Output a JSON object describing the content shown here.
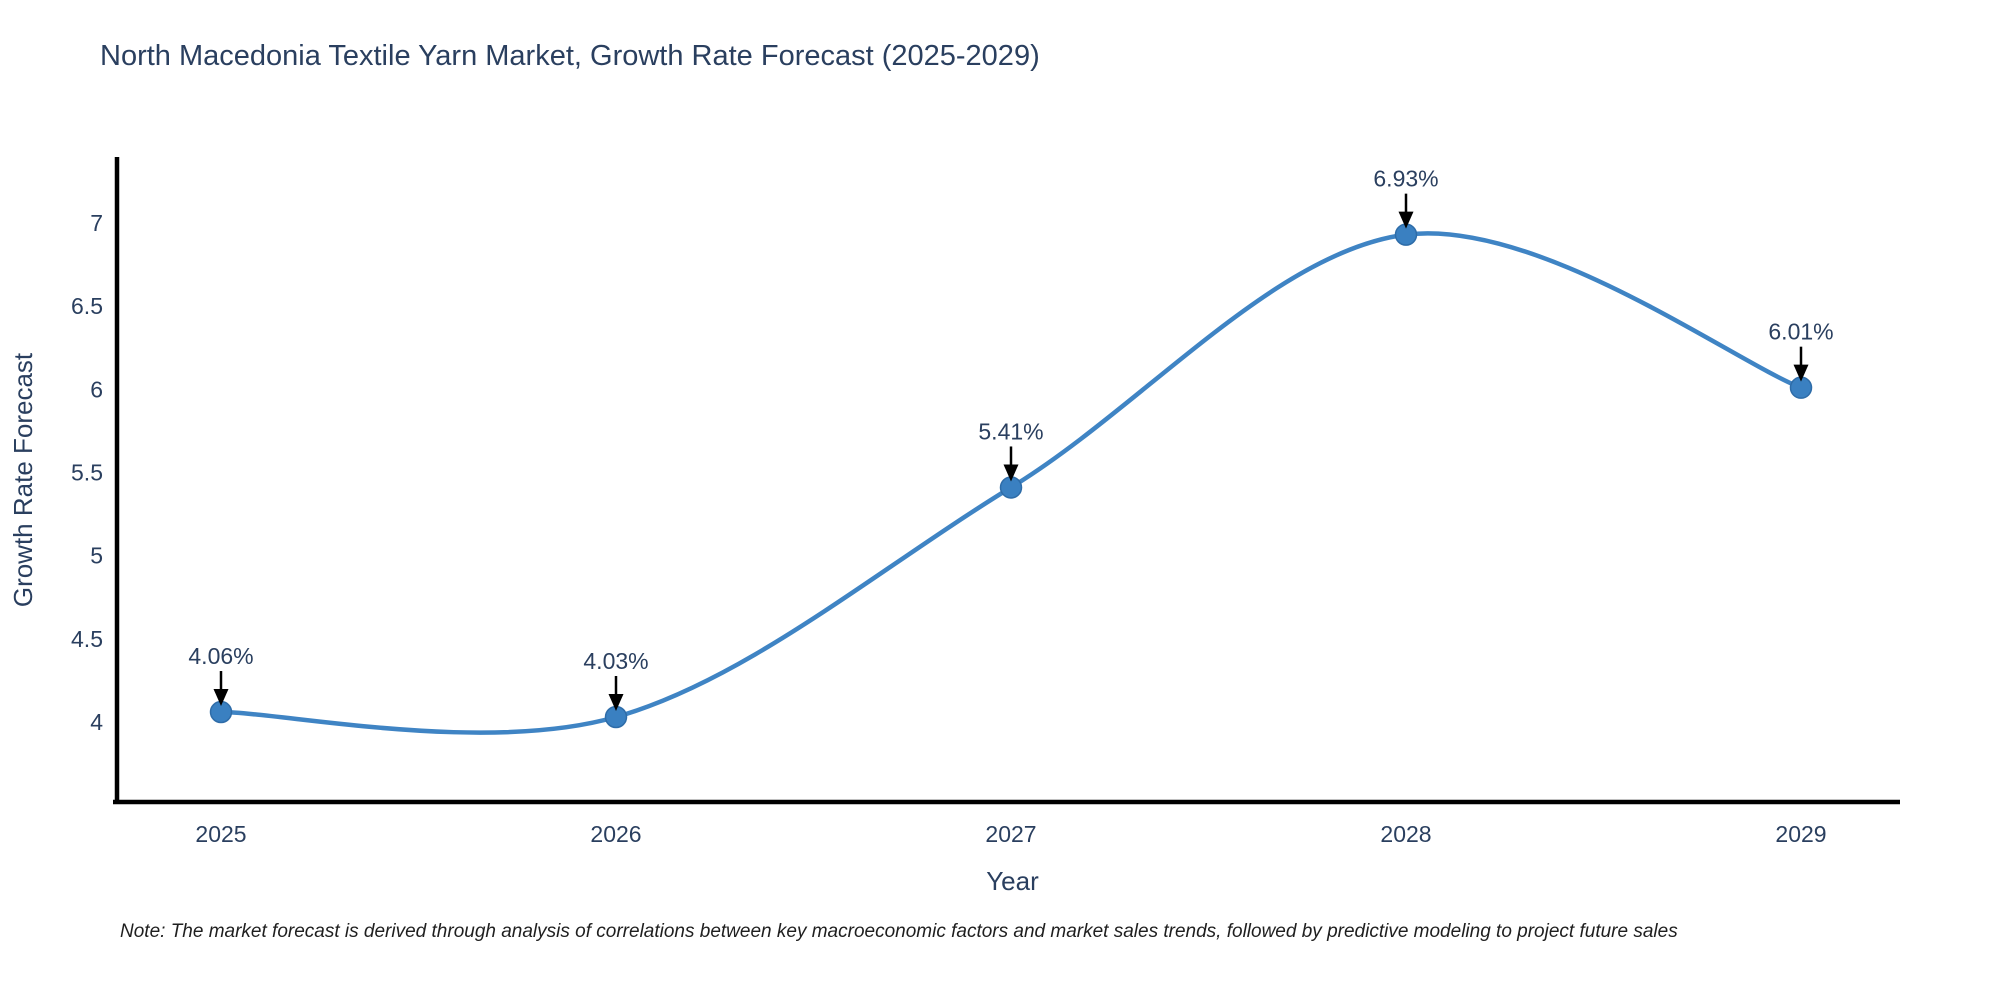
{
  "title": "North Macedonia Textile Yarn Market, Growth Rate Forecast (2025-2029)",
  "note": "Note: The market forecast is derived through analysis of correlations between key macroeconomic factors and market sales trends, followed by predictive modeling to project future sales",
  "chart_data": {
    "type": "line",
    "line_shape": "spline",
    "title": "North Macedonia Textile Yarn Market, Growth Rate Forecast (2025-2029)",
    "xlabel": "Year",
    "ylabel": "Growth Rate Forecast",
    "x": [
      2025,
      2026,
      2027,
      2028,
      2029
    ],
    "x_tick_labels": [
      "2025",
      "2026",
      "2027",
      "2028",
      "2029"
    ],
    "values": [
      4.06,
      4.03,
      5.41,
      6.93,
      6.01
    ],
    "point_labels": [
      "4.06%",
      "4.03%",
      "5.41%",
      "6.93%",
      "6.01%"
    ],
    "y_ticks": [
      4,
      4.5,
      5,
      5.5,
      6,
      6.5,
      7
    ],
    "y_tick_labels": [
      "4",
      "4.5",
      "5",
      "5.5",
      "6",
      "6.5",
      "7"
    ],
    "ylim": [
      3.52,
      7.38
    ],
    "grid": false,
    "legend": null,
    "annotation_style": "value labels with downward black arrows above each point",
    "colors": {
      "line": "#3f84c4",
      "marker": "#3a80c1",
      "marker_edge": "#2e6ca8",
      "arrow": "#000000",
      "axis": "#000000",
      "text": "#2a3f5f",
      "note_text": "#1f1f1f",
      "background": "#ffffff"
    }
  }
}
